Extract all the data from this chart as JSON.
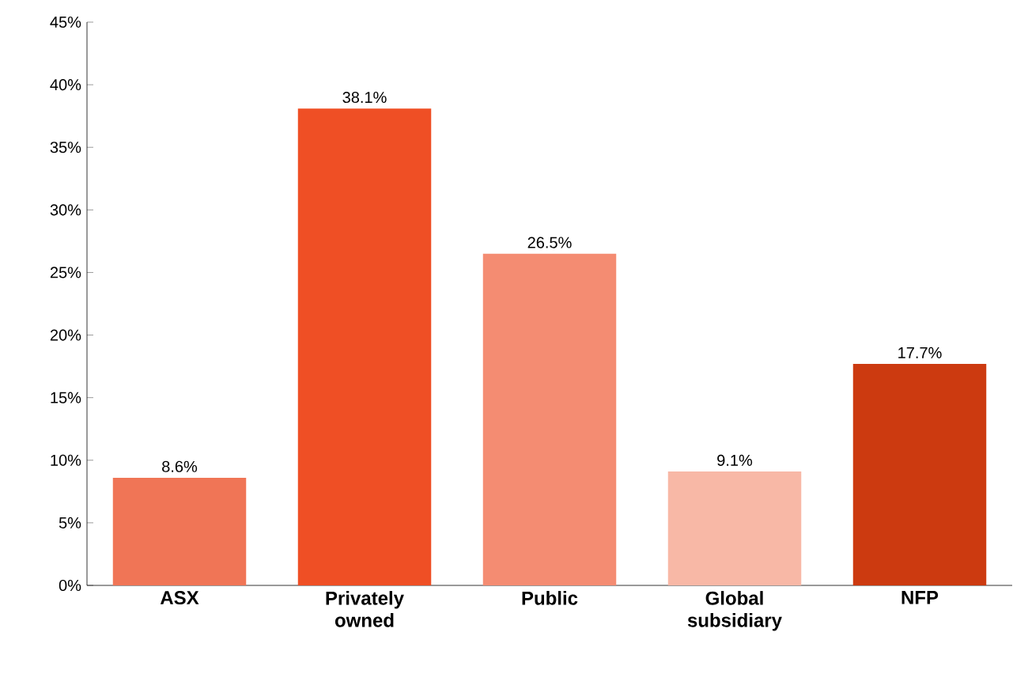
{
  "chart_data": {
    "type": "bar",
    "categories": [
      "ASX",
      "Privately owned",
      "Public",
      "Global subsidiary",
      "NFP"
    ],
    "values": [
      8.6,
      38.1,
      26.5,
      9.1,
      17.7
    ],
    "colors": [
      "#f07556",
      "#ef4f25",
      "#f48c72",
      "#f8b8a6",
      "#cc3a10"
    ],
    "value_labels": [
      "8.6%",
      "38.1%",
      "26.5%",
      "9.1%",
      "17.7%"
    ],
    "ylim": [
      0,
      45
    ],
    "yticks": [
      {
        "value": 0,
        "label": "0%"
      },
      {
        "value": 5,
        "label": "5%"
      },
      {
        "value": 10,
        "label": "10%"
      },
      {
        "value": 15,
        "label": "15%"
      },
      {
        "value": 20,
        "label": "20%"
      },
      {
        "value": 25,
        "label": "25%"
      },
      {
        "value": 30,
        "label": "30%"
      },
      {
        "value": 35,
        "label": "35%"
      },
      {
        "value": 40,
        "label": "40%"
      },
      {
        "value": 45,
        "label": "45%"
      }
    ],
    "grid": false
  }
}
